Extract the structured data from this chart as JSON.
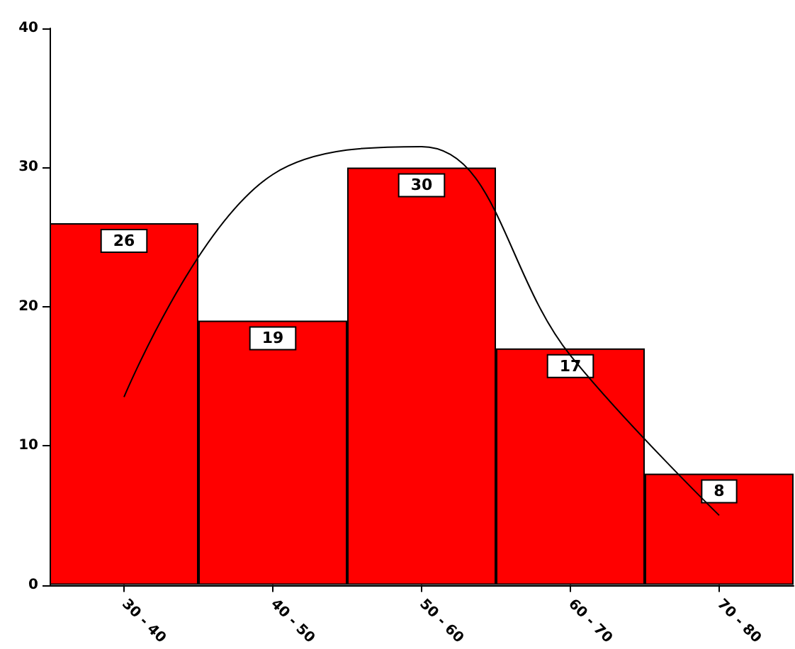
{
  "chart_data": {
    "type": "bar",
    "categories": [
      "30 - 40",
      "40 - 50",
      "50 - 60",
      "60 - 70",
      "70 - 80"
    ],
    "values": [
      26,
      19,
      30,
      17,
      8
    ],
    "color": "#ff0000",
    "value_labels": [
      "26",
      "19",
      "30",
      "17",
      "8"
    ],
    "ylim": [
      0,
      40
    ],
    "yticks": [
      0,
      10,
      20,
      30,
      40
    ],
    "grid": false,
    "series": [
      {
        "type": "line",
        "color": "#000000",
        "marker": "none",
        "values": [
          13.5,
          29.5,
          31.5,
          16.5,
          5
        ]
      }
    ]
  }
}
